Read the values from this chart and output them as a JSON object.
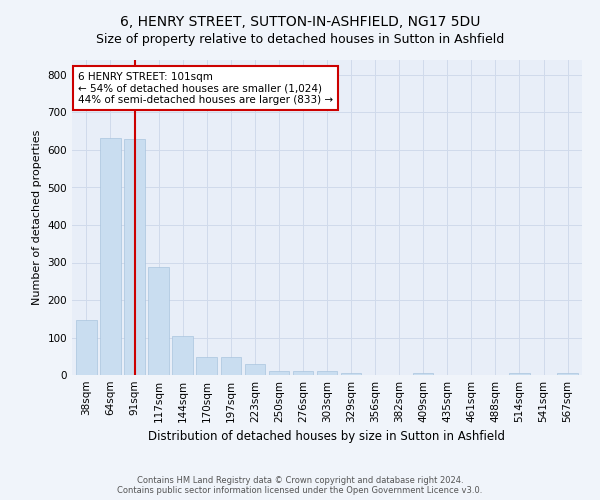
{
  "title": "6, HENRY STREET, SUTTON-IN-ASHFIELD, NG17 5DU",
  "subtitle": "Size of property relative to detached houses in Sutton in Ashfield",
  "xlabel": "Distribution of detached houses by size in Sutton in Ashfield",
  "ylabel": "Number of detached properties",
  "footer1": "Contains HM Land Registry data © Crown copyright and database right 2024.",
  "footer2": "Contains public sector information licensed under the Open Government Licence v3.0.",
  "categories": [
    "38sqm",
    "64sqm",
    "91sqm",
    "117sqm",
    "144sqm",
    "170sqm",
    "197sqm",
    "223sqm",
    "250sqm",
    "276sqm",
    "303sqm",
    "329sqm",
    "356sqm",
    "382sqm",
    "409sqm",
    "435sqm",
    "461sqm",
    "488sqm",
    "514sqm",
    "541sqm",
    "567sqm"
  ],
  "values": [
    148,
    632,
    630,
    287,
    103,
    47,
    47,
    30,
    10,
    11,
    10,
    6,
    0,
    0,
    6,
    0,
    0,
    0,
    6,
    0,
    6
  ],
  "bar_color": "#c9ddf0",
  "bar_edge_color": "#aac4de",
  "vline_x_index": 2,
  "vline_color": "#cc0000",
  "annotation_text": "6 HENRY STREET: 101sqm\n← 54% of detached houses are smaller (1,024)\n44% of semi-detached houses are larger (833) →",
  "annotation_box_facecolor": "#ffffff",
  "annotation_box_edgecolor": "#cc0000",
  "ylim": [
    0,
    840
  ],
  "yticks": [
    0,
    100,
    200,
    300,
    400,
    500,
    600,
    700,
    800
  ],
  "grid_color": "#d0daeb",
  "fig_bg_color": "#f0f4fa",
  "plot_bg_color": "#e8eef8",
  "title_fontsize": 10,
  "subtitle_fontsize": 9,
  "xlabel_fontsize": 8.5,
  "ylabel_fontsize": 8,
  "tick_fontsize": 7.5,
  "annotation_fontsize": 7.5,
  "footer_fontsize": 6
}
